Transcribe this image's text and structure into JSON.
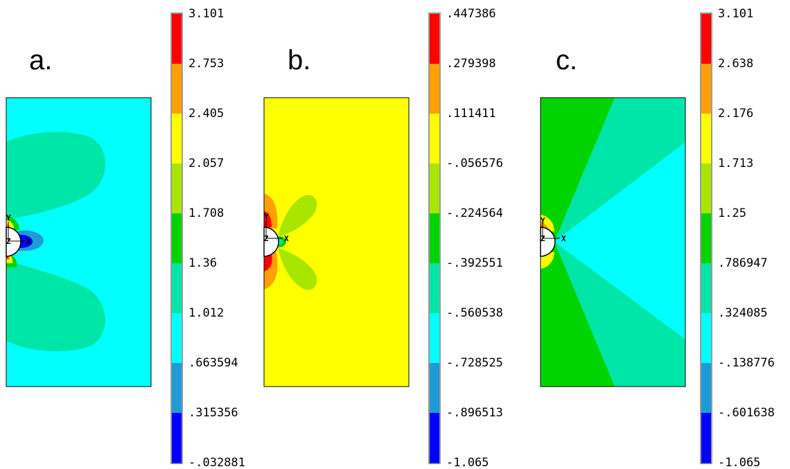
{
  "colors": {
    "blue": "#0000ff",
    "mid_blue": "#1e9bd7",
    "cyan": "#00ffff",
    "aquamarine": "#00e6a8",
    "green": "#00d400",
    "yellow_green": "#a8e600",
    "yellow": "#ffff00",
    "orange": "#ffa000",
    "red": "#ff0000",
    "legend_border": "#9a9a9a"
  },
  "colorbar_order": [
    "red",
    "orange",
    "yellow",
    "yellow_green",
    "green",
    "aquamarine",
    "cyan",
    "mid_blue",
    "blue"
  ],
  "panels": [
    {
      "letter": "a.",
      "axis_labels": {
        "y": "Y",
        "x": "X",
        "z": "Z"
      },
      "colorbar_ticks": [
        "3.101",
        "2.753",
        "2.405",
        "2.057",
        "1.708",
        "1.36",
        "1.012",
        ".663594",
        ".315356",
        "-.032881"
      ]
    },
    {
      "letter": "b.",
      "axis_labels": {
        "y": "Y",
        "x": "X",
        "z": "Z"
      },
      "colorbar_ticks": [
        ".447386",
        ".279398",
        ".111411",
        "-.056576",
        "-.224564",
        "-.392551",
        "-.560538",
        "-.728525",
        "-.896513",
        "-1.065"
      ]
    },
    {
      "letter": "c.",
      "axis_labels": {
        "y": "Y",
        "x": "X",
        "z": "Z"
      },
      "colorbar_ticks": [
        "3.101",
        "2.638",
        "2.176",
        "1.713",
        "1.25",
        ".786947",
        ".324085",
        "-.138776",
        "-.601638",
        "-1.065"
      ]
    }
  ]
}
